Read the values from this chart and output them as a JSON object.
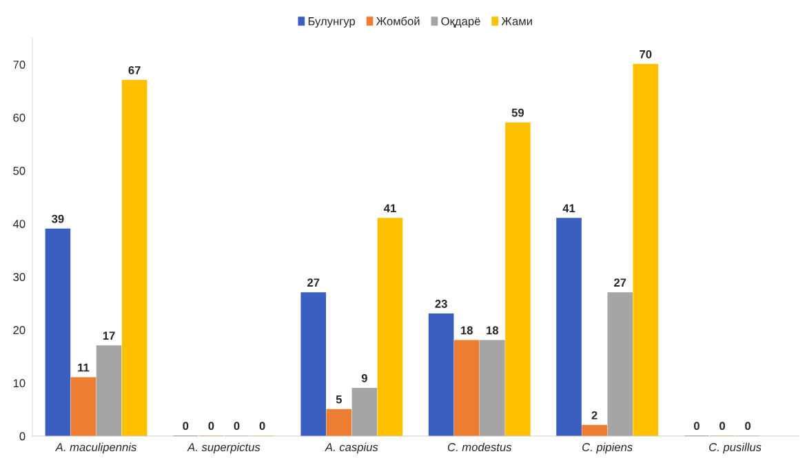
{
  "chart_data": {
    "type": "bar",
    "categories": [
      "A. maculipennis",
      "A. superpictus",
      "A. caspius",
      "C. modestus",
      "C. pipiens",
      "C. pusillus"
    ],
    "series": [
      {
        "name": "Булунгур",
        "color": "#3a5fc0",
        "values": [
          39,
          0,
          27,
          23,
          41,
          0
        ]
      },
      {
        "name": "Жомбой",
        "color": "#ed7d31",
        "values": [
          11,
          0,
          5,
          18,
          2,
          0
        ]
      },
      {
        "name": "Оқдарё",
        "color": "#a5a5a5",
        "values": [
          17,
          0,
          9,
          18,
          27,
          0
        ]
      },
      {
        "name": "Жами",
        "color": "#ffc000",
        "values": [
          67,
          0,
          41,
          59,
          70,
          null
        ]
      }
    ],
    "ylim": [
      0,
      75
    ],
    "yticks": [
      0,
      10,
      20,
      30,
      40,
      50,
      60,
      70
    ],
    "data_labels": true,
    "legend": "top",
    "grid": false
  }
}
